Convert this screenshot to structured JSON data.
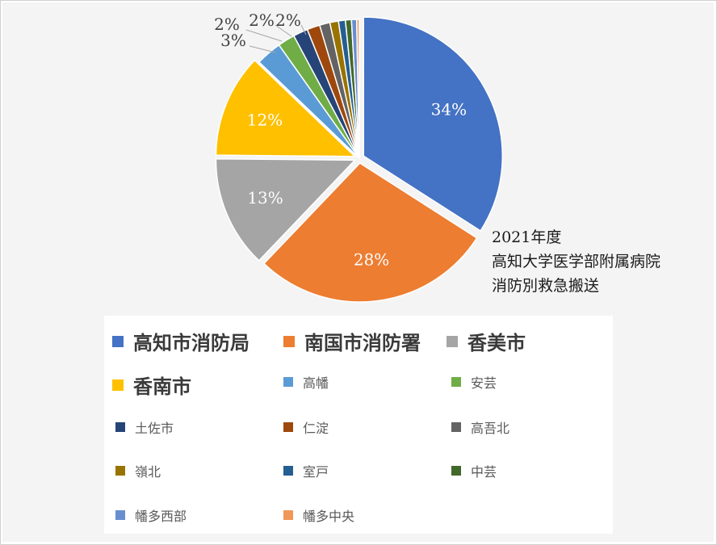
{
  "chart_data": {
    "type": "pie",
    "title": "",
    "slices": [
      {
        "label": "高知市消防局",
        "value": 34,
        "color": "#4472C4",
        "data_label": "34%"
      },
      {
        "label": "南国市消防署",
        "value": 28,
        "color": "#ED7D31",
        "data_label": "28%"
      },
      {
        "label": "香美市",
        "value": 13,
        "color": "#A5A5A5",
        "data_label": "13%"
      },
      {
        "label": "香南市",
        "value": 12,
        "color": "#FFC000",
        "data_label": "12%"
      },
      {
        "label": "高幡",
        "value": 3,
        "color": "#5B9BD5",
        "data_label": "3%"
      },
      {
        "label": "安芸",
        "value": 2,
        "color": "#70AD47",
        "data_label": "2%"
      },
      {
        "label": "土佐市",
        "value": 1.7,
        "color": "#264478",
        "data_label": "2%"
      },
      {
        "label": "仁淀",
        "value": 1.5,
        "color": "#9E480E",
        "data_label": "2%"
      },
      {
        "label": "高吾北",
        "value": 1.2,
        "color": "#636363",
        "data_label": ""
      },
      {
        "label": "嶺北",
        "value": 1.0,
        "color": "#997300",
        "data_label": ""
      },
      {
        "label": "室戸",
        "value": 0.8,
        "color": "#255E91",
        "data_label": ""
      },
      {
        "label": "中芸",
        "value": 0.7,
        "color": "#43682B",
        "data_label": ""
      },
      {
        "label": "幡多西部",
        "value": 0.6,
        "color": "#698ED0",
        "data_label": ""
      },
      {
        "label": "幡多中央",
        "value": 0.3,
        "color": "#F1975A",
        "data_label": ""
      }
    ],
    "legend_position": "bottom"
  },
  "annotation": {
    "line1": "2021年度",
    "line2": "高知大学医学部附属病院",
    "line3": "消防別救急搬送"
  }
}
